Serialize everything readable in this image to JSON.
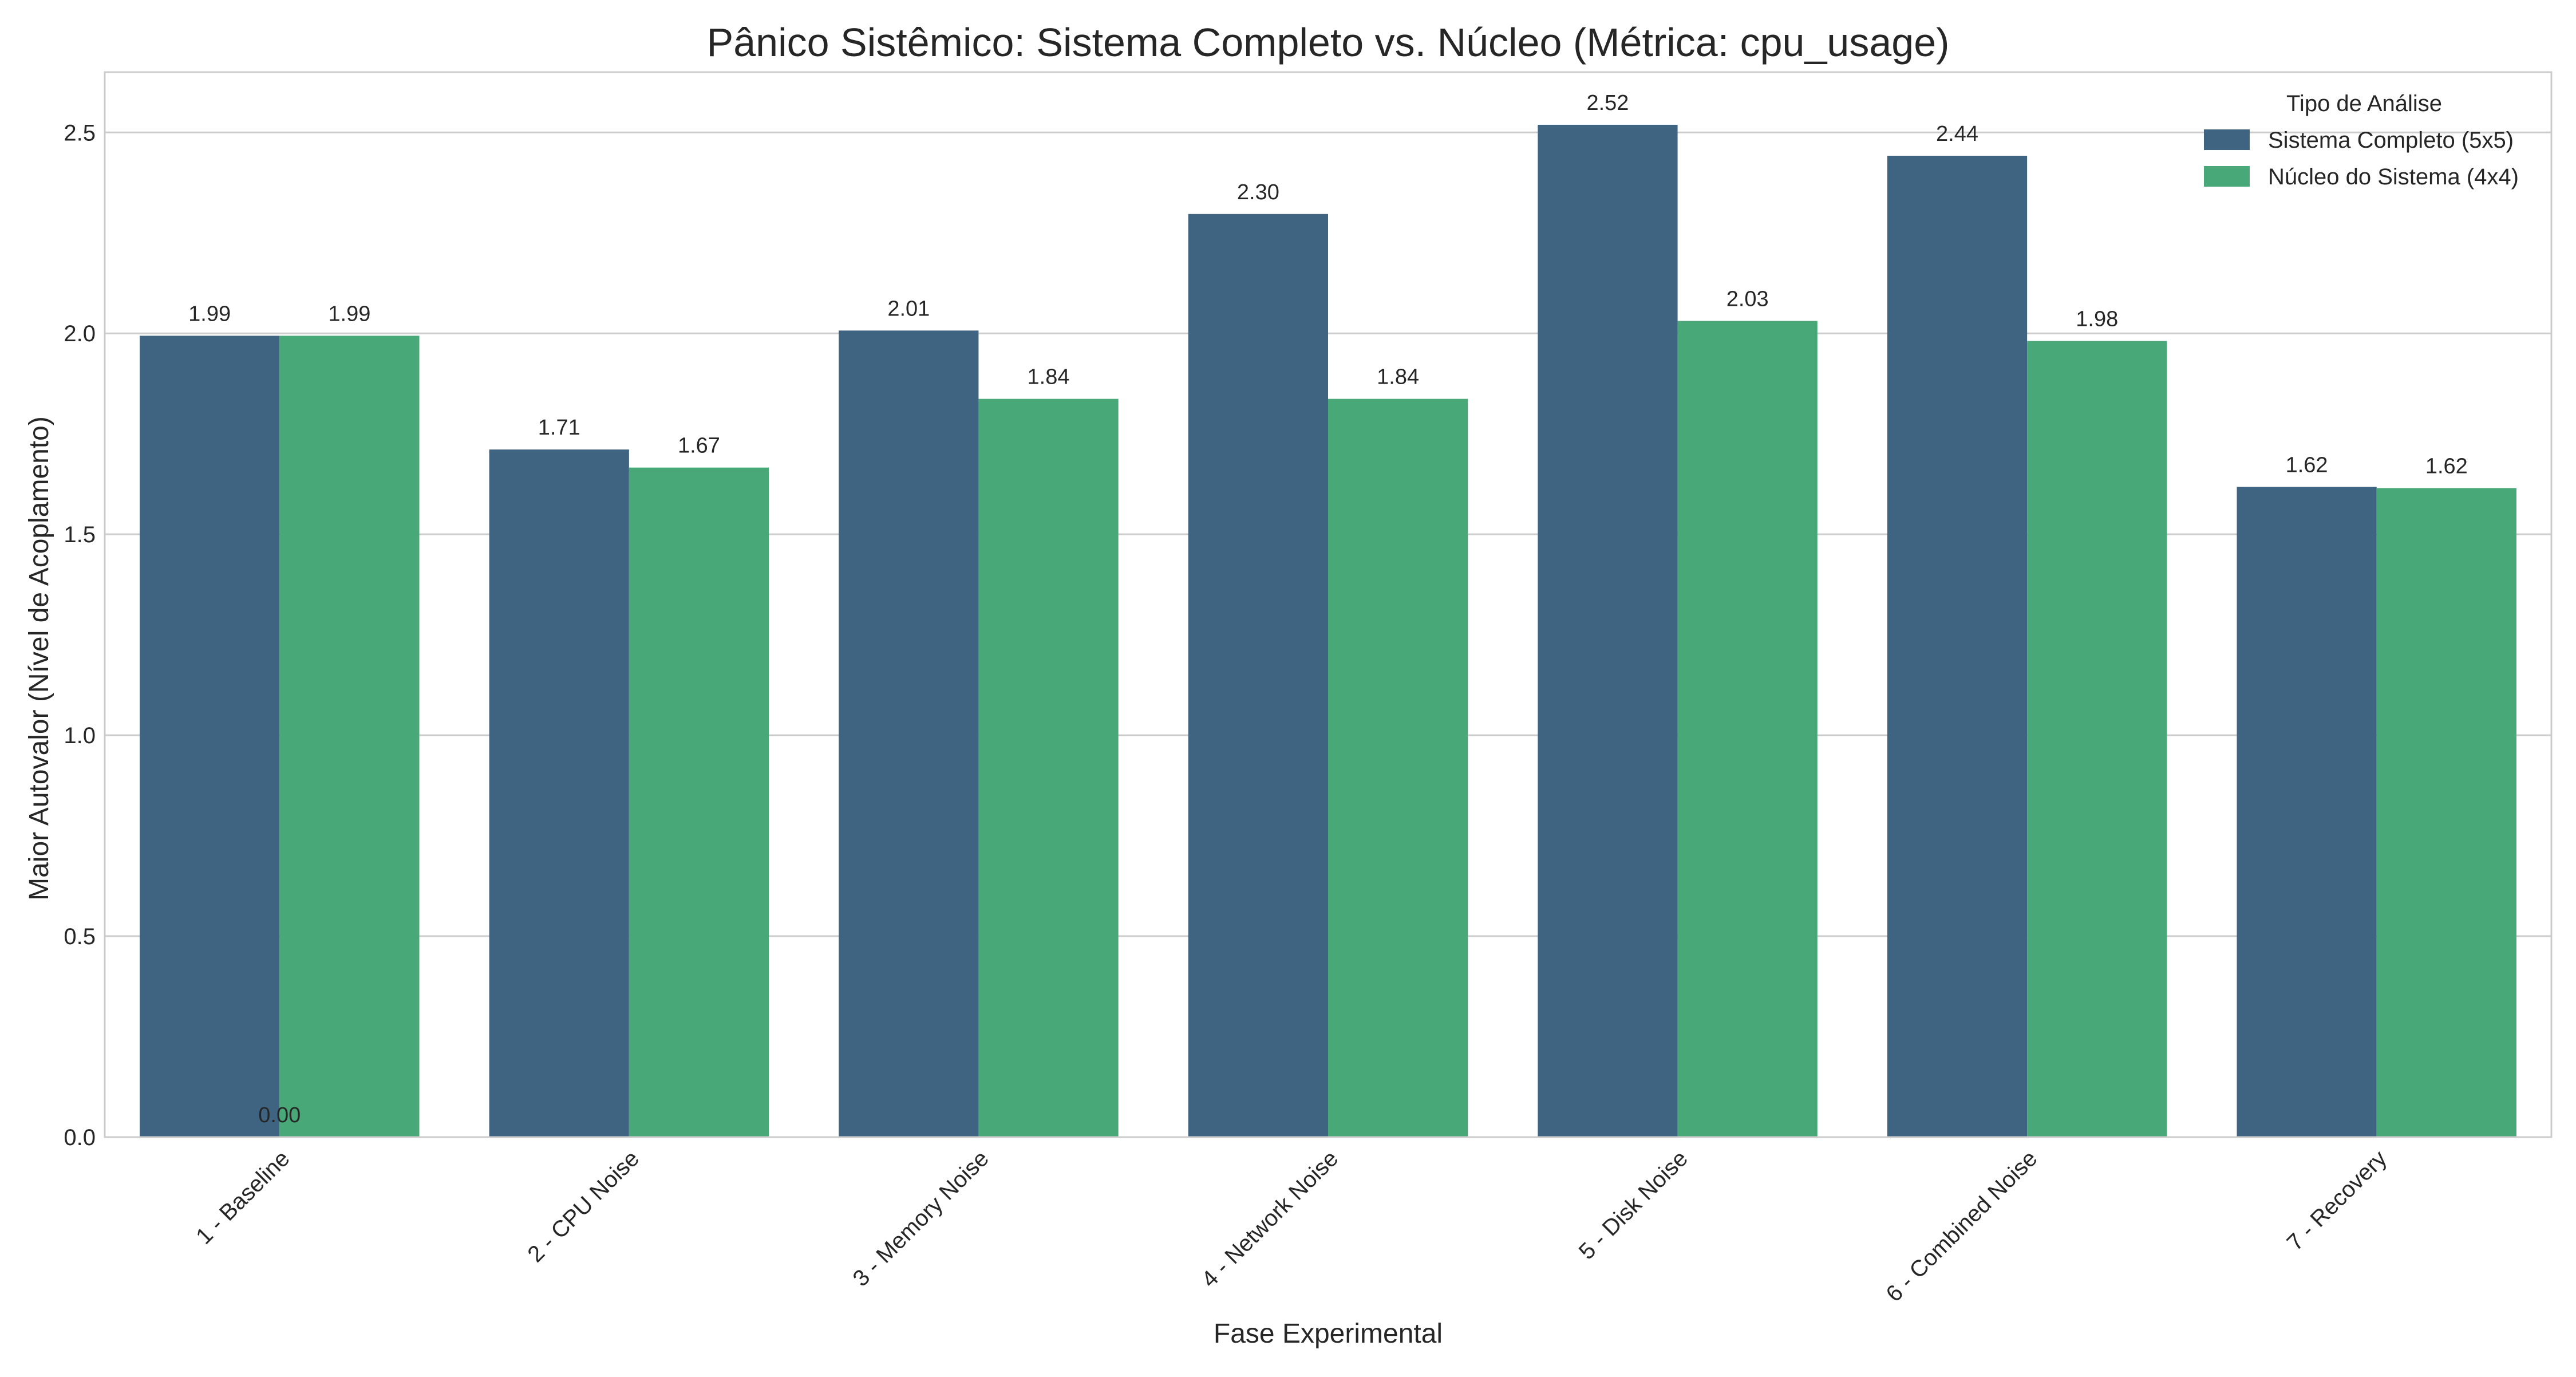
{
  "chart_data": {
    "type": "bar",
    "title": "Pânico Sistêmico: Sistema Completo vs. Núcleo (Métrica: cpu_usage)",
    "xlabel": "Fase Experimental",
    "ylabel": "Maior Autovalor (Nível de Acoplamento)",
    "ylim": [
      0,
      2.65
    ],
    "yticks": [
      0.0,
      0.5,
      1.0,
      1.5,
      2.0,
      2.5
    ],
    "ytick_labels": [
      "0.0",
      "0.5",
      "1.0",
      "1.5",
      "2.0",
      "2.5"
    ],
    "grid": "horizontal",
    "categories": [
      "1 - Baseline",
      "2 - CPU Noise",
      "3 - Memory Noise",
      "4 - Network Noise",
      "5 - Disk Noise",
      "6 - Combined Noise",
      "7 - Recovery"
    ],
    "series": [
      {
        "name": "Sistema Completo (5x5)",
        "color": "#3e6482",
        "values": [
          1.994,
          1.711,
          2.007,
          2.297,
          2.519,
          2.442,
          1.618
        ],
        "labels": [
          "1.99",
          "1.71",
          "2.01",
          "2.30",
          "2.52",
          "2.44",
          "1.62"
        ]
      },
      {
        "name": "Núcleo do Sistema (4x4)",
        "color": "#48a878",
        "values": [
          1.994,
          1.666,
          1.837,
          1.837,
          2.031,
          1.981,
          1.615
        ],
        "labels": [
          "1.99",
          "1.67",
          "1.84",
          "1.84",
          "2.03",
          "1.98",
          "1.62"
        ]
      }
    ],
    "extra_annotation": {
      "text": "0.00",
      "category_index": 0,
      "value": 0.0
    },
    "legend": {
      "title": "Tipo de Análise",
      "placement": "top-right"
    }
  }
}
